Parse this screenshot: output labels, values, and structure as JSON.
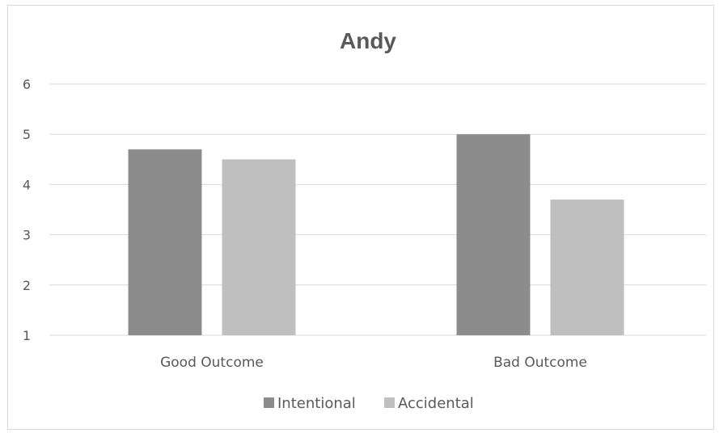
{
  "chart_data": {
    "type": "bar",
    "title": "Andy",
    "xlabel": "",
    "ylabel": "",
    "categories": [
      "Good Outcome",
      "Bad Outcome"
    ],
    "series": [
      {
        "name": "Intentional",
        "values": [
          4.7,
          5.0
        ],
        "color": "#8c8c8c"
      },
      {
        "name": "Accidental",
        "values": [
          4.5,
          3.7
        ],
        "color": "#bfbfbf"
      }
    ],
    "ylim": [
      1,
      6
    ],
    "yticks": [
      1,
      2,
      3,
      4,
      5,
      6
    ],
    "grid": true,
    "legend": "bottom",
    "gridline_color": "#d9d9d9",
    "text_color": "#595959"
  }
}
